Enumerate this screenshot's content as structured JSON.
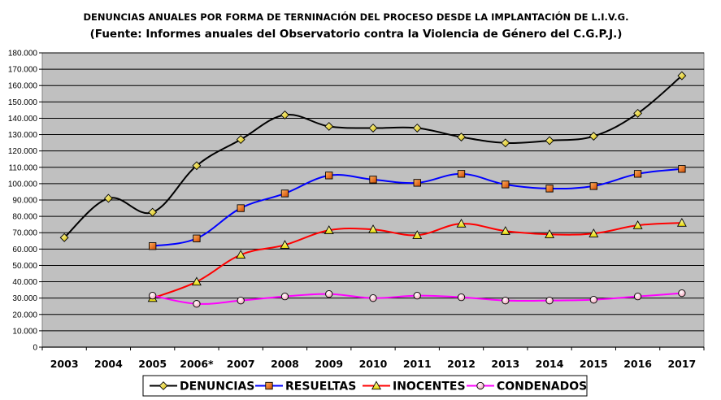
{
  "chart_data": {
    "type": "line",
    "title": "DENUNCIAS ANUALES POR FORMA DE TERNINACIÓN DEL PROCESO  DESDE LA IMPLANTACIÓN DE L.I.V.G.",
    "subtitle": "(Fuente: Informes anuales del Observatorio contra la Violencia de Género del C.G.P.J.)",
    "categories": [
      "2003",
      "2004",
      "2005",
      "2006*",
      "2007",
      "2008",
      "2009",
      "2010",
      "2011",
      "2012",
      "2013",
      "2014",
      "2015",
      "2016",
      "2017"
    ],
    "ylim": [
      0,
      180000
    ],
    "yticks": [
      0,
      10000,
      20000,
      30000,
      40000,
      50000,
      60000,
      70000,
      80000,
      90000,
      100000,
      110000,
      120000,
      130000,
      140000,
      150000,
      160000,
      170000,
      180000
    ],
    "ytick_labels": [
      "0",
      "10.000",
      "20.000",
      "30.000",
      "40.000",
      "50.000",
      "60.000",
      "70.000",
      "80.000",
      "90.000",
      "100.000",
      "110.000",
      "120.000",
      "130.000",
      "140.000",
      "150.000",
      "160.000",
      "170.000",
      "180.000"
    ],
    "grid": true,
    "legend_position": "bottom",
    "series": [
      {
        "name": "DENUNCIAS",
        "color": "#000000",
        "marker": "diamond",
        "marker_color": "#f0e020",
        "values": [
          67000,
          91000,
          82500,
          111000,
          127000,
          142000,
          135000,
          134000,
          134000,
          128500,
          124900,
          126300,
          129000,
          143000,
          166000
        ]
      },
      {
        "name": "RESUELTAS",
        "color": "#0000ff",
        "marker": "square",
        "marker_color": "#e05a00",
        "values": [
          null,
          null,
          61800,
          66500,
          85000,
          94000,
          105000,
          102500,
          100500,
          106000,
          99500,
          97000,
          98500,
          106000,
          109000
        ]
      },
      {
        "name": "INOCENTES",
        "color": "#ff0000",
        "marker": "triangle",
        "marker_color": "#ffff00",
        "values": [
          null,
          null,
          30000,
          40000,
          56500,
          62500,
          71500,
          72000,
          68500,
          75500,
          71000,
          69000,
          69500,
          74500,
          76000
        ]
      },
      {
        "name": "CONDENADOS",
        "color": "#ff00ff",
        "marker": "circle",
        "marker_color": "#ffc8d0",
        "values": [
          null,
          null,
          31500,
          26500,
          28500,
          31000,
          32500,
          30000,
          31500,
          30500,
          28500,
          28500,
          29000,
          31000,
          33000
        ]
      }
    ]
  }
}
